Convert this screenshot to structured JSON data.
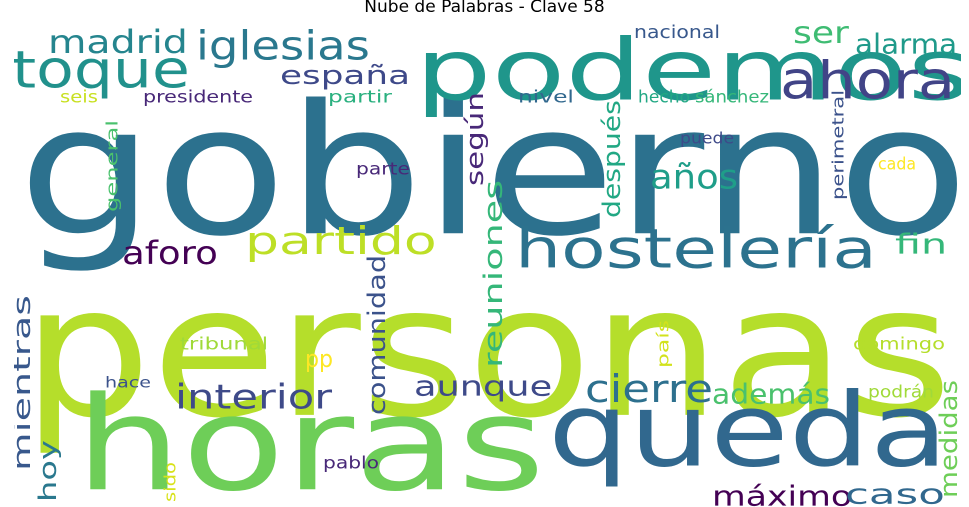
{
  "title": "Nube de Palabras - Clave 58",
  "words": [
    {
      "text": "personas",
      "color": "#b5de2b"
    },
    {
      "text": "gobierno",
      "color": "#2c718e"
    },
    {
      "text": "horas",
      "color": "#6ece58"
    },
    {
      "text": "queda",
      "color": "#31688e"
    },
    {
      "text": "podemos",
      "color": "#1f968b"
    },
    {
      "text": "hostelería",
      "color": "#2c728e"
    },
    {
      "text": "toque",
      "color": "#21918c"
    },
    {
      "text": "ahora",
      "color": "#414487"
    },
    {
      "text": "iglesias",
      "color": "#2a788e"
    },
    {
      "text": "madrid",
      "color": "#25858e"
    },
    {
      "text": "españa",
      "color": "#3e4989"
    },
    {
      "text": "partido",
      "color": "#bddf26"
    },
    {
      "text": "reuniones",
      "color": "#35b779"
    },
    {
      "text": "comunidad",
      "color": "#3b528b"
    },
    {
      "text": "interior",
      "color": "#3e4a89"
    },
    {
      "text": "cierre",
      "color": "#2d708e"
    },
    {
      "text": "aunque",
      "color": "#3e4a89"
    },
    {
      "text": "mientras",
      "color": "#38588c"
    },
    {
      "text": "máximo",
      "color": "#440154"
    },
    {
      "text": "según",
      "color": "#482878"
    },
    {
      "text": "después",
      "color": "#22a884"
    },
    {
      "text": "años",
      "color": "#1f9e89"
    },
    {
      "text": "ser",
      "color": "#3fbc73"
    },
    {
      "text": "alarma",
      "color": "#1f9a8a"
    },
    {
      "text": "aforo",
      "color": "#440154"
    },
    {
      "text": "fin",
      "color": "#35b779"
    },
    {
      "text": "pp",
      "color": "#fde725"
    },
    {
      "text": "además",
      "color": "#4ac16d"
    },
    {
      "text": "caso",
      "color": "#31688e"
    },
    {
      "text": "medidas",
      "color": "#6ece58"
    },
    {
      "text": "hoy",
      "color": "#2a788e"
    },
    {
      "text": "nacional",
      "color": "#38588c"
    },
    {
      "text": "presidente",
      "color": "#482878"
    },
    {
      "text": "partir",
      "color": "#2ab07f"
    },
    {
      "text": "nivel",
      "color": "#31688e"
    },
    {
      "text": "hecho",
      "color": "#22a884"
    },
    {
      "text": "sánchez",
      "color": "#35b779"
    },
    {
      "text": "seis",
      "color": "#c8e020"
    },
    {
      "text": "puede",
      "color": "#3e4a89"
    },
    {
      "text": "perimetral",
      "color": "#3b528b"
    },
    {
      "text": "cada",
      "color": "#fde725"
    },
    {
      "text": "parte",
      "color": "#482878"
    },
    {
      "text": "general",
      "color": "#4ac16d"
    },
    {
      "text": "tribunal",
      "color": "#a0da39"
    },
    {
      "text": "país",
      "color": "#d2e21b"
    },
    {
      "text": "domingo",
      "color": "#b5de2b"
    },
    {
      "text": "hace",
      "color": "#3b528b"
    },
    {
      "text": "podrán",
      "color": "#a0da39"
    },
    {
      "text": "pablo",
      "color": "#482878"
    },
    {
      "text": "sido",
      "color": "#d8e219"
    }
  ]
}
